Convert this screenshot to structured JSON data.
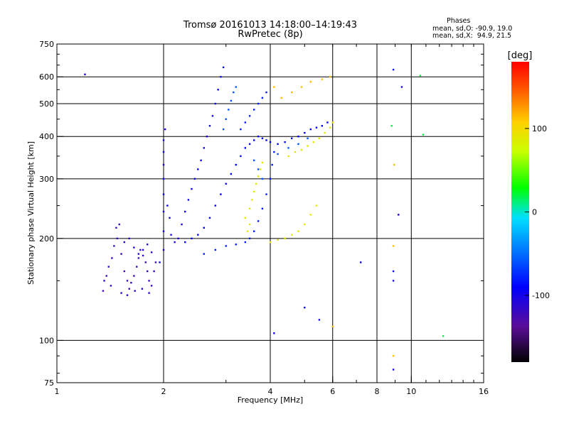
{
  "header": {
    "title_line1": "Tromsø 20161013 14:18:00–14:19:43",
    "title_line2": "RwPretec (8p)",
    "phase_title": "Phases",
    "phase_o": "mean, sd,O: -90.9, 19.0",
    "phase_x": "mean, sd,X:  94.9, 21.5"
  },
  "chart_data": {
    "type": "scatter",
    "xlabel": "Frequency [MHz]",
    "ylabel": "Stationary phase Virtual Height [km]",
    "x_scale": "log",
    "y_scale": "log",
    "xlim": [
      1,
      16
    ],
    "ylim": [
      75,
      750
    ],
    "x_ticks": [
      1,
      2,
      4,
      6,
      8,
      10,
      16
    ],
    "x_tick_labels": [
      "1",
      "2",
      "4",
      "6",
      "8",
      "10",
      "16"
    ],
    "y_ticks": [
      75,
      100,
      200,
      300,
      400,
      500,
      600,
      750
    ],
    "y_tick_labels": [
      "75",
      "100",
      "200",
      "300",
      "400",
      "500",
      "600",
      "750"
    ],
    "grid_x": [
      2,
      4,
      6,
      8,
      10
    ],
    "grid_y": [
      100,
      200,
      300,
      400,
      500,
      600
    ],
    "colorbar": {
      "label": "[deg]",
      "range": [
        -180,
        180
      ],
      "ticks": [
        100,
        0,
        -100
      ],
      "tick_labels": [
        "100",
        "0",
        "-100"
      ]
    },
    "series": [
      {
        "phase": -120,
        "points": [
          [
            1.35,
            140
          ],
          [
            1.38,
            155
          ],
          [
            1.4,
            165
          ],
          [
            1.43,
            175
          ],
          [
            1.45,
            190
          ],
          [
            1.47,
            215
          ],
          [
            1.5,
            220
          ],
          [
            1.48,
            200
          ],
          [
            1.52,
            180
          ],
          [
            1.55,
            160
          ],
          [
            1.58,
            150
          ],
          [
            1.6,
            142
          ],
          [
            1.62,
            148
          ],
          [
            1.65,
            155
          ],
          [
            1.68,
            165
          ],
          [
            1.7,
            175
          ],
          [
            1.72,
            185
          ],
          [
            1.75,
            178
          ],
          [
            1.78,
            170
          ],
          [
            1.8,
            160
          ],
          [
            1.82,
            150
          ],
          [
            1.85,
            145
          ],
          [
            1.88,
            160
          ],
          [
            1.9,
            170
          ]
        ]
      },
      {
        "phase": -110,
        "points": [
          [
            1.55,
            195
          ],
          [
            1.6,
            200
          ],
          [
            1.65,
            188
          ],
          [
            1.7,
            180
          ],
          [
            1.75,
            185
          ],
          [
            1.8,
            192
          ],
          [
            1.85,
            182
          ],
          [
            1.36,
            150
          ],
          [
            1.42,
            145
          ],
          [
            1.52,
            138
          ],
          [
            1.58,
            136
          ],
          [
            1.66,
            140
          ],
          [
            1.74,
            142
          ],
          [
            1.82,
            138
          ]
        ]
      },
      {
        "phase": -100,
        "points": [
          [
            1.95,
            170
          ],
          [
            2.0,
            185
          ],
          [
            2.0,
            210
          ],
          [
            2.0,
            240
          ],
          [
            2.0,
            270
          ],
          [
            2.0,
            300
          ],
          [
            2.0,
            330
          ],
          [
            2.0,
            360
          ],
          [
            2.0,
            390
          ],
          [
            2.02,
            420
          ],
          [
            2.05,
            250
          ],
          [
            2.08,
            230
          ],
          [
            2.1,
            205
          ],
          [
            2.15,
            195
          ],
          [
            2.2,
            200
          ],
          [
            2.25,
            220
          ],
          [
            2.3,
            240
          ],
          [
            2.35,
            260
          ],
          [
            2.4,
            280
          ],
          [
            2.45,
            300
          ],
          [
            2.5,
            320
          ],
          [
            2.55,
            340
          ],
          [
            2.6,
            370
          ],
          [
            2.65,
            400
          ],
          [
            2.7,
            430
          ],
          [
            2.75,
            460
          ],
          [
            2.8,
            500
          ],
          [
            2.85,
            550
          ],
          [
            2.9,
            600
          ],
          [
            2.95,
            640
          ]
        ]
      },
      {
        "phase": -90,
        "points": [
          [
            2.3,
            195
          ],
          [
            2.4,
            200
          ],
          [
            2.5,
            205
          ],
          [
            2.6,
            215
          ],
          [
            2.7,
            230
          ],
          [
            2.8,
            250
          ],
          [
            2.9,
            270
          ],
          [
            3.0,
            290
          ],
          [
            3.1,
            310
          ],
          [
            3.2,
            330
          ],
          [
            3.3,
            350
          ],
          [
            3.4,
            370
          ],
          [
            3.5,
            380
          ],
          [
            3.6,
            390
          ],
          [
            3.7,
            400
          ],
          [
            3.8,
            395
          ],
          [
            3.9,
            390
          ],
          [
            4.0,
            385
          ],
          [
            4.2,
            380
          ],
          [
            4.4,
            385
          ],
          [
            4.6,
            395
          ],
          [
            4.8,
            400
          ],
          [
            5.0,
            410
          ],
          [
            5.2,
            420
          ],
          [
            5.4,
            425
          ],
          [
            5.6,
            430
          ],
          [
            5.8,
            440
          ]
        ]
      },
      {
        "phase": -80,
        "points": [
          [
            2.6,
            180
          ],
          [
            2.8,
            185
          ],
          [
            3.0,
            190
          ],
          [
            3.2,
            192
          ],
          [
            3.4,
            195
          ],
          [
            3.5,
            200
          ],
          [
            3.6,
            210
          ],
          [
            3.7,
            225
          ],
          [
            3.8,
            245
          ],
          [
            3.9,
            270
          ],
          [
            4.0,
            300
          ],
          [
            4.05,
            330
          ],
          [
            4.1,
            360
          ],
          [
            3.3,
            420
          ],
          [
            3.4,
            440
          ],
          [
            3.5,
            460
          ],
          [
            3.6,
            480
          ],
          [
            3.7,
            500
          ],
          [
            3.8,
            520
          ],
          [
            3.9,
            540
          ]
        ]
      },
      {
        "phase": -60,
        "points": [
          [
            2.95,
            420
          ],
          [
            3.0,
            450
          ],
          [
            3.05,
            480
          ],
          [
            3.1,
            510
          ],
          [
            3.15,
            540
          ],
          [
            3.2,
            560
          ],
          [
            3.6,
            340
          ],
          [
            3.7,
            320
          ],
          [
            3.8,
            300
          ],
          [
            4.2,
            355
          ],
          [
            4.5,
            370
          ],
          [
            4.8,
            380
          ],
          [
            5.1,
            395
          ]
        ]
      },
      {
        "phase": 90,
        "points": [
          [
            3.4,
            230
          ],
          [
            3.5,
            245
          ],
          [
            3.55,
            260
          ],
          [
            3.6,
            275
          ],
          [
            3.65,
            290
          ],
          [
            3.7,
            305
          ],
          [
            3.75,
            320
          ],
          [
            3.8,
            335
          ],
          [
            3.5,
            220
          ],
          [
            3.45,
            210
          ],
          [
            4.0,
            195
          ],
          [
            4.2,
            198
          ],
          [
            4.4,
            200
          ],
          [
            4.6,
            205
          ],
          [
            4.8,
            210
          ],
          [
            5.0,
            220
          ],
          [
            5.2,
            235
          ],
          [
            5.4,
            250
          ],
          [
            4.5,
            350
          ],
          [
            4.7,
            360
          ],
          [
            4.9,
            365
          ],
          [
            5.1,
            375
          ],
          [
            5.3,
            385
          ],
          [
            5.5,
            395
          ],
          [
            5.7,
            410
          ],
          [
            5.9,
            425
          ],
          [
            6.0,
            440
          ]
        ]
      },
      {
        "phase": 115,
        "points": [
          [
            4.3,
            520
          ],
          [
            4.6,
            540
          ],
          [
            4.9,
            560
          ],
          [
            5.2,
            580
          ],
          [
            5.6,
            590
          ],
          [
            5.9,
            600
          ],
          [
            4.1,
            560
          ],
          [
            8.9,
            90
          ],
          [
            8.9,
            190
          ],
          [
            8.95,
            330
          ],
          [
            6.0,
            110
          ]
        ]
      },
      {
        "phase": -100,
        "points": [
          [
            1.2,
            610
          ],
          [
            8.9,
            630
          ],
          [
            9.4,
            560
          ],
          [
            9.2,
            235
          ],
          [
            7.2,
            170
          ],
          [
            5.5,
            115
          ],
          [
            5.0,
            125
          ],
          [
            4.1,
            105
          ],
          [
            8.9,
            82
          ],
          [
            8.9,
            160
          ],
          [
            8.9,
            150
          ]
        ]
      },
      {
        "phase": 20,
        "points": [
          [
            10.6,
            605
          ],
          [
            8.8,
            430
          ],
          [
            10.8,
            405
          ],
          [
            12.3,
            103
          ]
        ]
      }
    ]
  }
}
